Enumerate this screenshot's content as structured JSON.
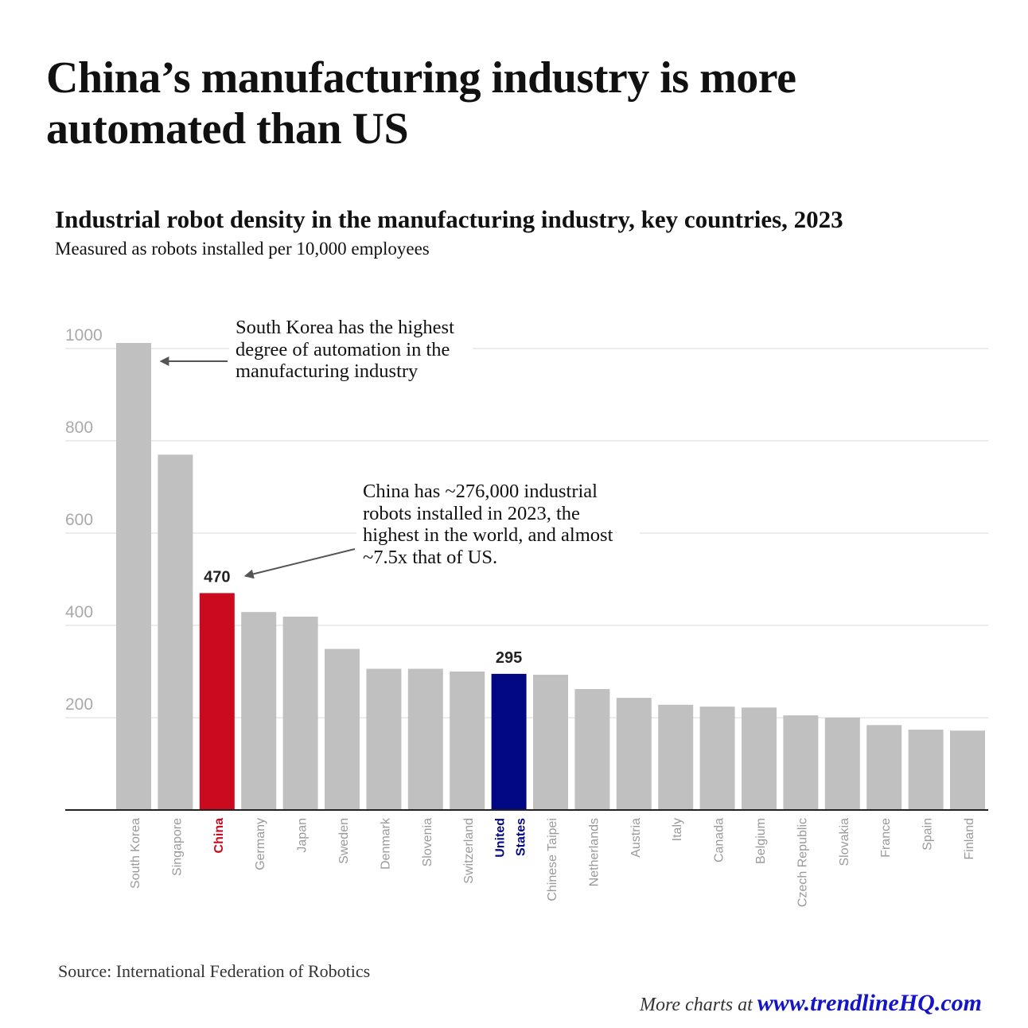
{
  "title": "China’s manufacturing industry is more automated than US",
  "chart_data": {
    "type": "bar",
    "title": "Industrial robot density in the manufacturing industry, key countries, 2023",
    "subtitle": "Measured as robots installed per 10,000 employees",
    "categories": [
      "South Korea",
      "Singapore",
      "China",
      "Germany",
      "Japan",
      "Sweden",
      "Denmark",
      "Slovenia",
      "Switzerland",
      "United States",
      "Chinese Taipei",
      "Netherlands",
      "Austria",
      "Italy",
      "Canada",
      "Belgium",
      "Czech Republic",
      "Slovakia",
      "France",
      "Spain",
      "Finland"
    ],
    "values": [
      1012,
      770,
      470,
      429,
      419,
      349,
      306,
      306,
      300,
      295,
      293,
      262,
      243,
      228,
      224,
      222,
      205,
      200,
      184,
      174,
      172
    ],
    "ylim": [
      0,
      1000
    ],
    "yticks": [
      200,
      400,
      600,
      800,
      1000
    ],
    "grid": true,
    "data_labels": {
      "China": "470",
      "United States": "295"
    },
    "highlight_colors": {
      "China": "#cc0a1f",
      "United States": "#020783",
      "default": "#c1c0c1"
    },
    "label_colors": {
      "China": "#cc0a1f",
      "United States": "#020783",
      "default": "#9a9a9a"
    },
    "annotations": [
      "South Korea has the highest degree of automation in the manufacturing industry",
      "China has ~276,000 industrial robots installed in 2023, the highest in the world, and almost ~7.5x that of US."
    ]
  },
  "source": "Source: International Federation of Robotics",
  "footer": {
    "prefix": "More charts at ",
    "link": "www.trendlineHQ.com"
  }
}
